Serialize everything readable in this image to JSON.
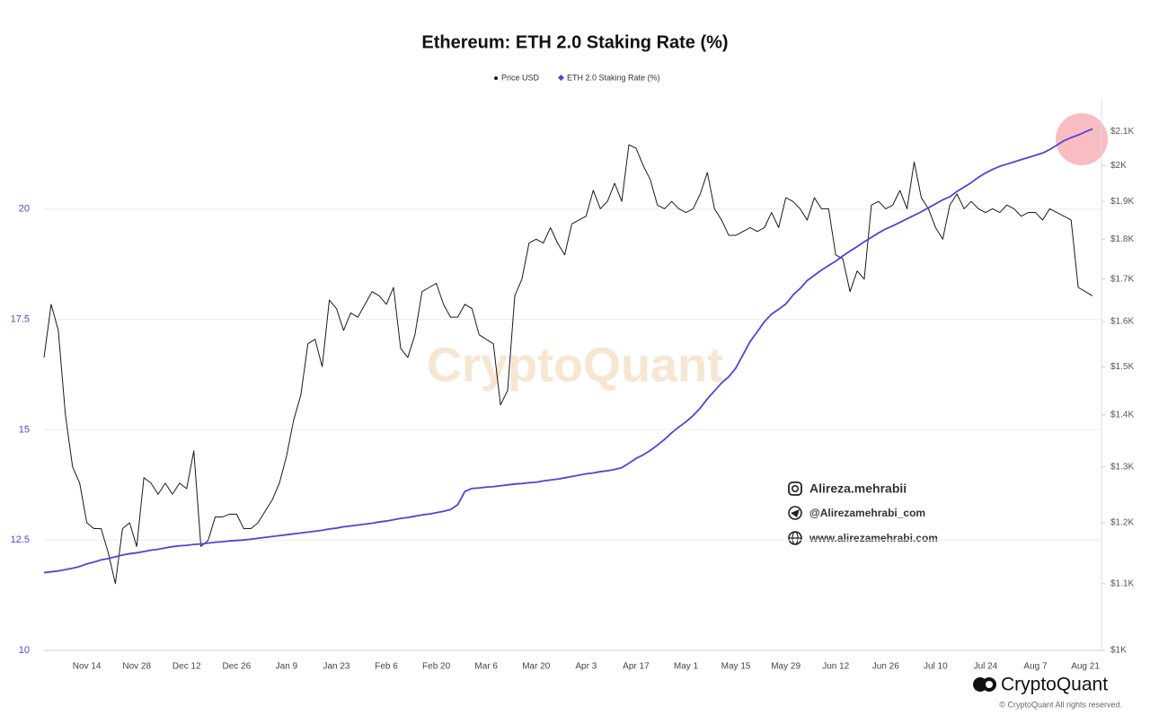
{
  "chart_data": {
    "type": "line",
    "title": "Ethereum: ETH 2.0 Staking Rate (%)",
    "categories": [
      null,
      null,
      null,
      null,
      null,
      null,
      "Nov 14",
      null,
      null,
      null,
      null,
      null,
      null,
      "Nov 28",
      null,
      null,
      null,
      null,
      null,
      null,
      "Dec 12",
      null,
      null,
      null,
      null,
      null,
      null,
      "Dec 26",
      null,
      null,
      null,
      null,
      null,
      null,
      "Jan 9",
      null,
      null,
      null,
      null,
      null,
      null,
      "Jan 23",
      null,
      null,
      null,
      null,
      null,
      null,
      "Feb 6",
      null,
      null,
      null,
      null,
      null,
      null,
      "Feb 20",
      null,
      null,
      null,
      null,
      null,
      null,
      "Mar 6",
      null,
      null,
      null,
      null,
      null,
      null,
      "Mar 20",
      null,
      null,
      null,
      null,
      null,
      null,
      "Apr 3",
      null,
      null,
      null,
      null,
      null,
      null,
      "Apr 17",
      null,
      null,
      null,
      null,
      null,
      null,
      "May 1",
      null,
      null,
      null,
      null,
      null,
      null,
      "May 15",
      null,
      null,
      null,
      null,
      null,
      null,
      "May 29",
      null,
      null,
      null,
      null,
      null,
      null,
      "Jun 12",
      null,
      null,
      null,
      null,
      null,
      null,
      "Jun 26",
      null,
      null,
      null,
      null,
      null,
      null,
      "Jul 10",
      null,
      null,
      null,
      null,
      null,
      null,
      "Jul 24",
      null,
      null,
      null,
      null,
      null,
      null,
      "Aug 7",
      null,
      null,
      null,
      null,
      null,
      null,
      "Aug 21",
      null
    ],
    "series": [
      {
        "name": "Price USD",
        "color": "#1a1a1a",
        "axis": "y2",
        "values": [
          1520,
          1640,
          1580,
          1400,
          1300,
          1270,
          1200,
          1190,
          1190,
          1150,
          1100,
          1190,
          1200,
          1160,
          1280,
          1270,
          1250,
          1270,
          1250,
          1270,
          1260,
          1330,
          1160,
          1170,
          1210,
          1210,
          1215,
          1215,
          1190,
          1190,
          1200,
          1220,
          1240,
          1270,
          1320,
          1390,
          1440,
          1550,
          1560,
          1500,
          1650,
          1630,
          1580,
          1620,
          1610,
          1640,
          1670,
          1660,
          1640,
          1680,
          1540,
          1520,
          1570,
          1670,
          1680,
          1690,
          1640,
          1610,
          1610,
          1640,
          1630,
          1570,
          1560,
          1550,
          1420,
          1450,
          1660,
          1700,
          1790,
          1800,
          1790,
          1830,
          1790,
          1760,
          1840,
          1850,
          1860,
          1930,
          1880,
          1900,
          1950,
          1900,
          2060,
          2050,
          2000,
          1960,
          1890,
          1880,
          1900,
          1880,
          1870,
          1880,
          1920,
          1980,
          1880,
          1850,
          1810,
          1810,
          1820,
          1830,
          1820,
          1830,
          1870,
          1830,
          1910,
          1900,
          1880,
          1850,
          1910,
          1880,
          1880,
          1760,
          1750,
          1670,
          1720,
          1700,
          1890,
          1900,
          1880,
          1890,
          1930,
          1880,
          2010,
          1910,
          1880,
          1830,
          1800,
          1890,
          1920,
          1880,
          1900,
          1880,
          1870,
          1880,
          1870,
          1890,
          1880,
          1860,
          1870,
          1870,
          1850,
          1880,
          1870,
          1860,
          1850,
          1680,
          1670,
          1660
        ]
      },
      {
        "name": "ETH 2.0 Staking Rate (%)",
        "color": "#5a3fd8",
        "values": [
          11.76,
          11.78,
          11.8,
          11.83,
          11.86,
          11.9,
          11.96,
          12.0,
          12.05,
          12.08,
          12.12,
          12.16,
          12.19,
          12.21,
          12.24,
          12.27,
          12.29,
          12.32,
          12.35,
          12.37,
          12.38,
          12.4,
          12.41,
          12.43,
          12.45,
          12.46,
          12.48,
          12.49,
          12.5,
          12.52,
          12.54,
          12.56,
          12.58,
          12.6,
          12.62,
          12.64,
          12.66,
          12.68,
          12.7,
          12.72,
          12.75,
          12.77,
          12.8,
          12.82,
          12.84,
          12.86,
          12.88,
          12.91,
          12.93,
          12.96,
          12.99,
          13.01,
          13.04,
          13.07,
          13.09,
          13.12,
          13.15,
          13.19,
          13.3,
          13.6,
          13.67,
          13.68,
          13.7,
          13.71,
          13.73,
          13.75,
          13.77,
          13.78,
          13.8,
          13.81,
          13.84,
          13.86,
          13.88,
          13.91,
          13.94,
          13.97,
          14.0,
          14.02,
          14.05,
          14.07,
          14.1,
          14.14,
          14.24,
          14.35,
          14.43,
          14.53,
          14.65,
          14.78,
          14.93,
          15.06,
          15.18,
          15.32,
          15.49,
          15.7,
          15.88,
          16.06,
          16.2,
          16.4,
          16.7,
          17.0,
          17.22,
          17.45,
          17.62,
          17.73,
          17.85,
          18.05,
          18.2,
          18.38,
          18.5,
          18.62,
          18.72,
          18.82,
          18.94,
          19.05,
          19.15,
          19.26,
          19.36,
          19.46,
          19.55,
          19.62,
          19.7,
          19.78,
          19.86,
          19.94,
          20.03,
          20.12,
          20.21,
          20.28,
          20.4,
          20.5,
          20.6,
          20.72,
          20.82,
          20.9,
          20.97,
          21.02,
          21.07,
          21.12,
          21.17,
          21.22,
          21.27,
          21.35,
          21.45,
          21.55,
          21.62,
          21.68,
          21.75,
          21.82
        ]
      }
    ],
    "ylim": [
      10,
      22.5
    ],
    "yticks": [
      10,
      12.5,
      15,
      17.5,
      20
    ],
    "y2lim": [
      1000,
      2200
    ],
    "y2log": true,
    "y2ticks": [
      {
        "value": 1000,
        "label": "$1K"
      },
      {
        "value": 1100,
        "label": "$1.1K"
      },
      {
        "value": 1200,
        "label": "$1.2K"
      },
      {
        "value": 1300,
        "label": "$1.3K"
      },
      {
        "value": 1400,
        "label": "$1.4K"
      },
      {
        "value": 1500,
        "label": "$1.5K"
      },
      {
        "value": 1600,
        "label": "$1.6K"
      },
      {
        "value": 1700,
        "label": "$1.7K"
      },
      {
        "value": 1800,
        "label": "$1.8K"
      },
      {
        "value": 1900,
        "label": "$1.9K"
      },
      {
        "value": 2000,
        "label": "$2K"
      },
      {
        "value": 2100,
        "label": "$2.1K"
      }
    ],
    "grid": true,
    "legend": "top",
    "watermark": "CryptoQuant",
    "credits": {
      "instagram": "Alireza.mehrabii",
      "telegram": "@Alirezamehrabi_com",
      "website": "www.alirezamehrabi.com"
    },
    "brand": "CryptoQuant",
    "copyright": "© CryptoQuant All rights reserved."
  }
}
